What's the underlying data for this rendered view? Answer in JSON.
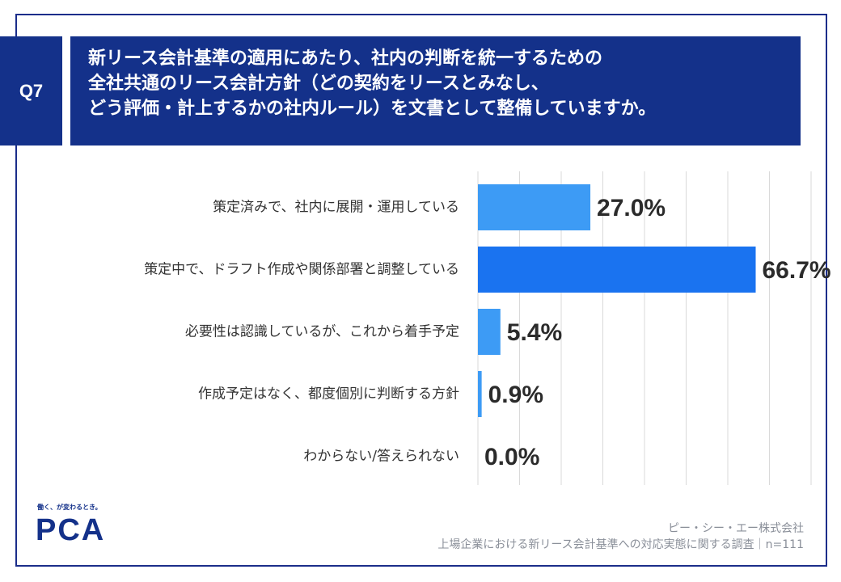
{
  "question": {
    "badge": "Q7",
    "lines": [
      "新リース会計基準の適用にあたり、社内の判断を統一するための",
      "全社共通のリース会計方針（どの契約をリースとみなし、",
      "どう評価・計上するかの社内ルール）を文書として整備していますか。"
    ]
  },
  "chart_data": {
    "type": "bar",
    "orientation": "horizontal",
    "categories": [
      "策定済みで、社内に展開・運用している",
      "策定中で、ドラフト作成や関係部署と調整している",
      "必要性は認識しているが、これから着手予定",
      "作成予定はなく、都度個別に判断する方針",
      "わからない/答えられない"
    ],
    "values": [
      27.0,
      66.7,
      5.4,
      0.9,
      0.0
    ],
    "value_labels": [
      "27.0%",
      "66.7%",
      "5.4%",
      "0.9%",
      "0.0%"
    ],
    "xlim": [
      0,
      80
    ],
    "grid": true,
    "colors": [
      "#3d9bf5",
      "#1a73f0",
      "#3d9bf5",
      "#3d9bf5",
      "#3d9bf5"
    ]
  },
  "brand": {
    "tagline": "働く、が変わるとき。",
    "logo": "PCA"
  },
  "credit": {
    "company": "ピー・シー・エー株式会社",
    "survey": "上場企業における新リース会計基準への対応実態に関する調査｜n=111"
  }
}
